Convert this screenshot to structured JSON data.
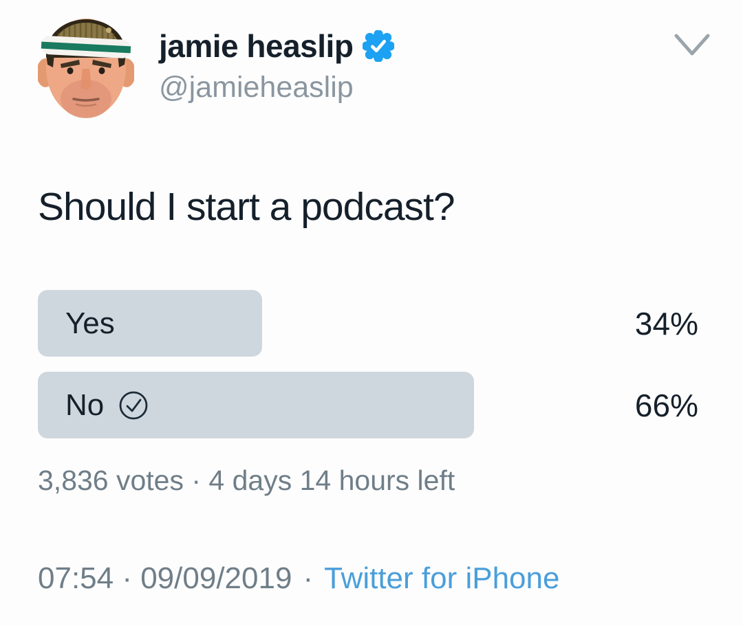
{
  "tweet": {
    "author": {
      "name": "jamie heaslip",
      "handle": "@jamieheaslip",
      "verified": true
    },
    "question": "Should I start a podcast?",
    "poll": {
      "options": [
        {
          "label": "Yes",
          "percent": "34%",
          "value": 34,
          "voted": false
        },
        {
          "label": "No",
          "percent": "66%",
          "value": 66,
          "voted": true
        }
      ],
      "meta": "3,836 votes · 4 days 14 hours left"
    },
    "footer": {
      "timestamp": "07:54 · 09/09/2019",
      "separator": "·",
      "source": "Twitter for iPhone"
    }
  },
  "icons": {
    "verified": "verified-badge",
    "chevron": "chevron-down",
    "vote_check": "check-circle"
  },
  "colors": {
    "bar": "#ced7de",
    "text": "#15202b",
    "muted": "#6f7e88",
    "handle_gray": "#8a96a0",
    "link_blue": "#4a9eda",
    "verified_blue": "#1da1f2"
  },
  "chart_data": {
    "type": "bar",
    "orientation": "horizontal",
    "title": "Should I start a podcast?",
    "categories": [
      "Yes",
      "No"
    ],
    "values": [
      34,
      66
    ],
    "unit": "%",
    "votes_label": "3,836 votes",
    "time_left": "4 days 14 hours left",
    "user_vote": "No"
  }
}
